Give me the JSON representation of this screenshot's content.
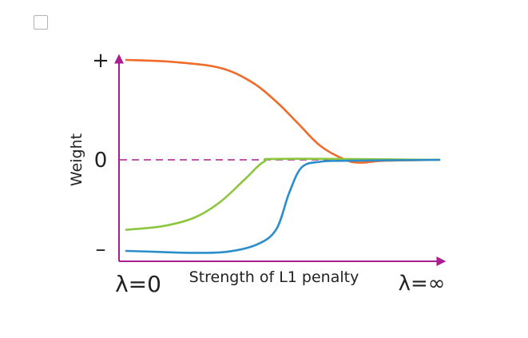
{
  "checkbox": {
    "checked": false
  },
  "chart_data": {
    "type": "line",
    "xlabel": "Strength of L1 penalty",
    "ylabel": "Weight",
    "x_start_label": "λ=0",
    "x_end_label": "λ=∞",
    "y_tick_labels": {
      "plus": "+",
      "zero": "0",
      "minus": "–"
    },
    "ylim": [
      -1,
      1
    ],
    "xlim": [
      0,
      1
    ],
    "series": [
      {
        "color": "#f06a2a",
        "x": [
          0.0,
          0.15,
          0.3,
          0.4,
          0.48,
          0.55,
          0.62,
          0.7,
          0.75,
          0.82,
          1.0
        ],
        "y": [
          1.0,
          0.98,
          0.92,
          0.78,
          0.58,
          0.36,
          0.14,
          0.0,
          -0.03,
          -0.01,
          0.0
        ]
      },
      {
        "color": "#8cc63f",
        "x": [
          0.0,
          0.12,
          0.22,
          0.3,
          0.38,
          0.44,
          0.5,
          1.0
        ],
        "y": [
          -0.73,
          -0.69,
          -0.6,
          -0.44,
          -0.2,
          -0.02,
          0.01,
          0.0
        ]
      },
      {
        "color": "#2b8ec8",
        "x": [
          0.0,
          0.1,
          0.2,
          0.32,
          0.42,
          0.48,
          0.52,
          0.56,
          0.62,
          0.7,
          1.0
        ],
        "y": [
          -0.95,
          -0.96,
          -0.97,
          -0.96,
          -0.88,
          -0.72,
          -0.35,
          -0.08,
          -0.02,
          -0.01,
          0.0
        ]
      }
    ],
    "zero_line_color": "#aa1e8f",
    "axis_color": "#aa1e8f"
  }
}
